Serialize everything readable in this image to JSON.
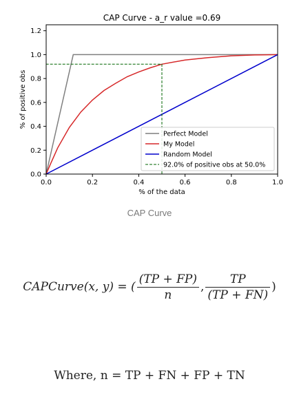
{
  "chart_data": {
    "type": "line",
    "title": "CAP Curve - a_r value =0.69",
    "xlabel": "% of the data",
    "ylabel": "% of positive obs",
    "xlim": [
      0.0,
      1.0
    ],
    "ylim": [
      0.0,
      1.25
    ],
    "x_ticks": [
      "0.0",
      "0.2",
      "0.4",
      "0.6",
      "0.8",
      "1.0"
    ],
    "y_ticks": [
      "0.0",
      "0.2",
      "0.4",
      "0.6",
      "0.8",
      "1.0",
      "1.2"
    ],
    "legend_position": "lower-right",
    "series": [
      {
        "name": "Perfect Model",
        "color": "#7f7f7f",
        "x": [
          0.0,
          0.117,
          1.0
        ],
        "y": [
          0.0,
          1.0,
          1.0
        ]
      },
      {
        "name": "My Model",
        "color": "#d62728",
        "x": [
          0.0,
          0.02,
          0.05,
          0.1,
          0.15,
          0.2,
          0.25,
          0.3,
          0.35,
          0.4,
          0.45,
          0.5,
          0.6,
          0.7,
          0.8,
          0.9,
          1.0
        ],
        "y": [
          0.0,
          0.09,
          0.22,
          0.39,
          0.52,
          0.62,
          0.7,
          0.76,
          0.815,
          0.855,
          0.89,
          0.92,
          0.955,
          0.975,
          0.99,
          0.997,
          1.0
        ]
      },
      {
        "name": "Random Model",
        "color": "#0000cc",
        "x": [
          0.0,
          1.0
        ],
        "y": [
          0.0,
          1.0
        ]
      },
      {
        "name": "92.0% of positive obs at 50.0%",
        "color": "#006400",
        "style": "dashed",
        "x": [
          0.5,
          0.5,
          0.0
        ],
        "y": [
          0.0,
          0.92,
          0.92
        ]
      }
    ]
  },
  "caption": "CAP Curve",
  "formula_1": {
    "lhs": "CAPCurve(x, y) = (",
    "num1": "(TP + FP)",
    "den1": "n",
    "sep": ",",
    "num2": "TP",
    "den2": "(TP + FN)",
    "close": ")"
  },
  "formula_2": "Where, n = TP + FN + FP + TN"
}
